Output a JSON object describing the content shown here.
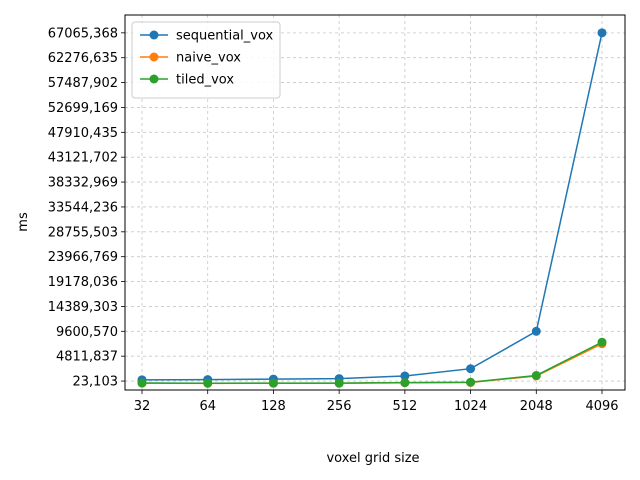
{
  "chart_data": {
    "type": "line",
    "xlabel": "voxel grid size",
    "ylabel": "ms",
    "categories": [
      "32",
      "64",
      "128",
      "256",
      "512",
      "1024",
      "2048",
      "4096"
    ],
    "y_ticks": [
      23103,
      4811837,
      9600570,
      14389303,
      19178036,
      23966769,
      28755503,
      33544236,
      38332969,
      43121702,
      47910435,
      52699169,
      57487902,
      62276635,
      67065368
    ],
    "y_tick_labels": [
      "23,103",
      "4811,837",
      "9600,570",
      "14389,303",
      "19178,036",
      "23966,769",
      "28755,503",
      "33544,236",
      "38332,969",
      "43121,702",
      "47910,435",
      "52699,169",
      "57487,902",
      "62276,635",
      "67065,368"
    ],
    "ylim": [
      -1700000,
      70500000
    ],
    "grid": true,
    "grid_style": "dashed",
    "legend_position": "top-left",
    "series": [
      {
        "name": "sequential_vox",
        "color": "#1f77b4",
        "values": [
          260000,
          300000,
          400000,
          500000,
          1000000,
          2400000,
          9600570,
          67065368
        ]
      },
      {
        "name": "naive_vox",
        "color": "#ff7f0e",
        "values": [
          -380000,
          -420000,
          -400000,
          -400000,
          -300000,
          -250000,
          1000000,
          7200000
        ]
      },
      {
        "name": "tiled_vox",
        "color": "#2ca02c",
        "values": [
          -350000,
          -400000,
          -380000,
          -380000,
          -280000,
          -200000,
          1100000,
          7500000
        ]
      }
    ]
  }
}
